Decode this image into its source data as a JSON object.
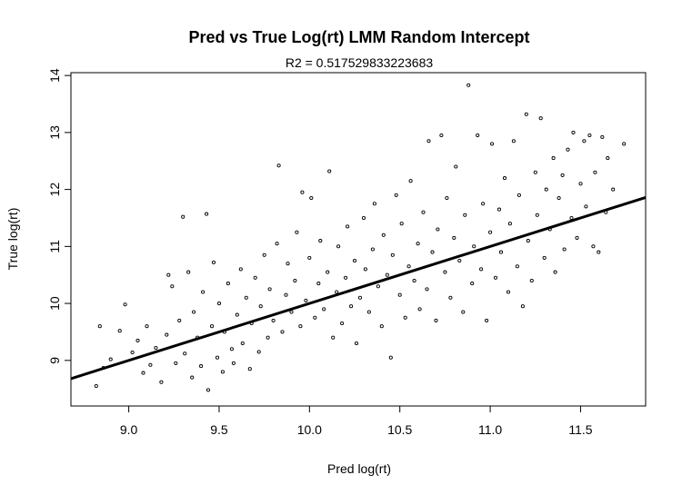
{
  "chart_data": {
    "type": "scatter",
    "title": "Pred vs True Log(rt) LMM Random Intercept",
    "subtitle": "R2 = 0.517529833223683",
    "xlabel": "Pred log(rt)",
    "ylabel": "True log(rt)",
    "xlim": [
      8.68,
      11.86
    ],
    "ylim": [
      8.2,
      14.05
    ],
    "xticks": [
      "9.0",
      "9.5",
      "10.0",
      "10.5",
      "11.0",
      "11.5"
    ],
    "yticks": [
      "9",
      "10",
      "11",
      "12",
      "13",
      "14"
    ],
    "grid": false,
    "legend": "none",
    "regression_line": {
      "x": [
        8.68,
        11.86
      ],
      "y": [
        8.68,
        11.86
      ]
    },
    "points": [
      [
        8.82,
        8.55
      ],
      [
        8.84,
        9.6
      ],
      [
        8.86,
        8.87
      ],
      [
        8.9,
        9.02
      ],
      [
        8.95,
        9.52
      ],
      [
        8.98,
        9.98
      ],
      [
        9.02,
        9.14
      ],
      [
        9.05,
        9.35
      ],
      [
        9.08,
        8.78
      ],
      [
        9.1,
        9.6
      ],
      [
        9.12,
        8.92
      ],
      [
        9.15,
        9.22
      ],
      [
        9.18,
        8.62
      ],
      [
        9.21,
        9.45
      ],
      [
        9.22,
        10.5
      ],
      [
        9.24,
        10.3
      ],
      [
        9.26,
        8.95
      ],
      [
        9.28,
        9.7
      ],
      [
        9.3,
        11.52
      ],
      [
        9.31,
        9.12
      ],
      [
        9.33,
        10.55
      ],
      [
        9.35,
        8.7
      ],
      [
        9.36,
        9.85
      ],
      [
        9.38,
        9.4
      ],
      [
        9.4,
        8.9
      ],
      [
        9.41,
        10.2
      ],
      [
        9.43,
        11.57
      ],
      [
        9.44,
        8.48
      ],
      [
        9.46,
        9.6
      ],
      [
        9.47,
        10.72
      ],
      [
        9.49,
        9.05
      ],
      [
        9.5,
        10.0
      ],
      [
        9.52,
        8.8
      ],
      [
        9.53,
        9.5
      ],
      [
        9.55,
        10.35
      ],
      [
        9.57,
        9.2
      ],
      [
        9.58,
        8.95
      ],
      [
        9.6,
        9.8
      ],
      [
        9.62,
        10.6
      ],
      [
        9.63,
        9.3
      ],
      [
        9.65,
        10.1
      ],
      [
        9.67,
        8.85
      ],
      [
        9.68,
        9.65
      ],
      [
        9.7,
        10.45
      ],
      [
        9.72,
        9.15
      ],
      [
        9.73,
        9.95
      ],
      [
        9.75,
        10.85
      ],
      [
        9.77,
        9.4
      ],
      [
        9.78,
        10.25
      ],
      [
        9.8,
        9.7
      ],
      [
        9.82,
        11.05
      ],
      [
        9.83,
        12.42
      ],
      [
        9.85,
        9.5
      ],
      [
        9.87,
        10.15
      ],
      [
        9.88,
        10.7
      ],
      [
        9.9,
        9.85
      ],
      [
        9.92,
        10.4
      ],
      [
        9.93,
        11.25
      ],
      [
        9.95,
        9.6
      ],
      [
        9.96,
        11.95
      ],
      [
        9.98,
        10.05
      ],
      [
        10.0,
        10.8
      ],
      [
        10.01,
        11.85
      ],
      [
        10.03,
        9.75
      ],
      [
        10.05,
        10.35
      ],
      [
        10.06,
        11.1
      ],
      [
        10.08,
        9.9
      ],
      [
        10.1,
        10.55
      ],
      [
        10.11,
        12.32
      ],
      [
        10.13,
        9.4
      ],
      [
        10.15,
        10.2
      ],
      [
        10.16,
        11.0
      ],
      [
        10.18,
        9.65
      ],
      [
        10.2,
        10.45
      ],
      [
        10.21,
        11.35
      ],
      [
        10.23,
        9.95
      ],
      [
        10.25,
        10.75
      ],
      [
        10.26,
        9.3
      ],
      [
        10.28,
        10.1
      ],
      [
        10.3,
        11.5
      ],
      [
        10.31,
        10.6
      ],
      [
        10.33,
        9.85
      ],
      [
        10.35,
        10.95
      ],
      [
        10.36,
        11.75
      ],
      [
        10.38,
        10.3
      ],
      [
        10.4,
        9.6
      ],
      [
        10.41,
        11.2
      ],
      [
        10.43,
        10.5
      ],
      [
        10.45,
        9.05
      ],
      [
        10.46,
        10.85
      ],
      [
        10.48,
        11.9
      ],
      [
        10.5,
        10.15
      ],
      [
        10.51,
        11.4
      ],
      [
        10.53,
        9.75
      ],
      [
        10.55,
        10.65
      ],
      [
        10.56,
        12.15
      ],
      [
        10.58,
        10.4
      ],
      [
        10.6,
        11.05
      ],
      [
        10.61,
        9.9
      ],
      [
        10.63,
        11.6
      ],
      [
        10.65,
        10.25
      ],
      [
        10.66,
        12.85
      ],
      [
        10.68,
        10.9
      ],
      [
        10.7,
        9.7
      ],
      [
        10.71,
        11.3
      ],
      [
        10.73,
        12.95
      ],
      [
        10.75,
        10.55
      ],
      [
        10.76,
        11.85
      ],
      [
        10.78,
        10.1
      ],
      [
        10.8,
        11.15
      ],
      [
        10.81,
        12.4
      ],
      [
        10.83,
        10.75
      ],
      [
        10.85,
        9.85
      ],
      [
        10.86,
        11.55
      ],
      [
        10.88,
        13.83
      ],
      [
        10.9,
        10.35
      ],
      [
        10.91,
        11.0
      ],
      [
        10.93,
        12.95
      ],
      [
        10.95,
        10.6
      ],
      [
        10.96,
        11.75
      ],
      [
        10.98,
        9.7
      ],
      [
        11.0,
        11.25
      ],
      [
        11.01,
        12.8
      ],
      [
        11.03,
        10.45
      ],
      [
        11.05,
        11.65
      ],
      [
        11.06,
        10.9
      ],
      [
        11.08,
        12.2
      ],
      [
        11.1,
        10.2
      ],
      [
        11.11,
        11.4
      ],
      [
        11.13,
        12.85
      ],
      [
        11.15,
        10.65
      ],
      [
        11.16,
        11.9
      ],
      [
        11.18,
        9.95
      ],
      [
        11.2,
        13.32
      ],
      [
        11.21,
        11.1
      ],
      [
        11.23,
        10.4
      ],
      [
        11.25,
        12.3
      ],
      [
        11.26,
        11.55
      ],
      [
        11.28,
        13.25
      ],
      [
        11.3,
        10.8
      ],
      [
        11.31,
        12.0
      ],
      [
        11.33,
        11.3
      ],
      [
        11.35,
        12.55
      ],
      [
        11.36,
        10.55
      ],
      [
        11.38,
        11.85
      ],
      [
        11.4,
        12.25
      ],
      [
        11.41,
        10.95
      ],
      [
        11.43,
        12.7
      ],
      [
        11.45,
        11.5
      ],
      [
        11.46,
        13.0
      ],
      [
        11.48,
        11.15
      ],
      [
        11.5,
        12.1
      ],
      [
        11.52,
        12.85
      ],
      [
        11.53,
        11.7
      ],
      [
        11.55,
        12.95
      ],
      [
        11.57,
        11.0
      ],
      [
        11.58,
        12.3
      ],
      [
        11.6,
        10.9
      ],
      [
        11.62,
        12.92
      ],
      [
        11.64,
        11.6
      ],
      [
        11.65,
        12.55
      ],
      [
        11.68,
        12.0
      ],
      [
        11.74,
        12.8
      ]
    ]
  }
}
